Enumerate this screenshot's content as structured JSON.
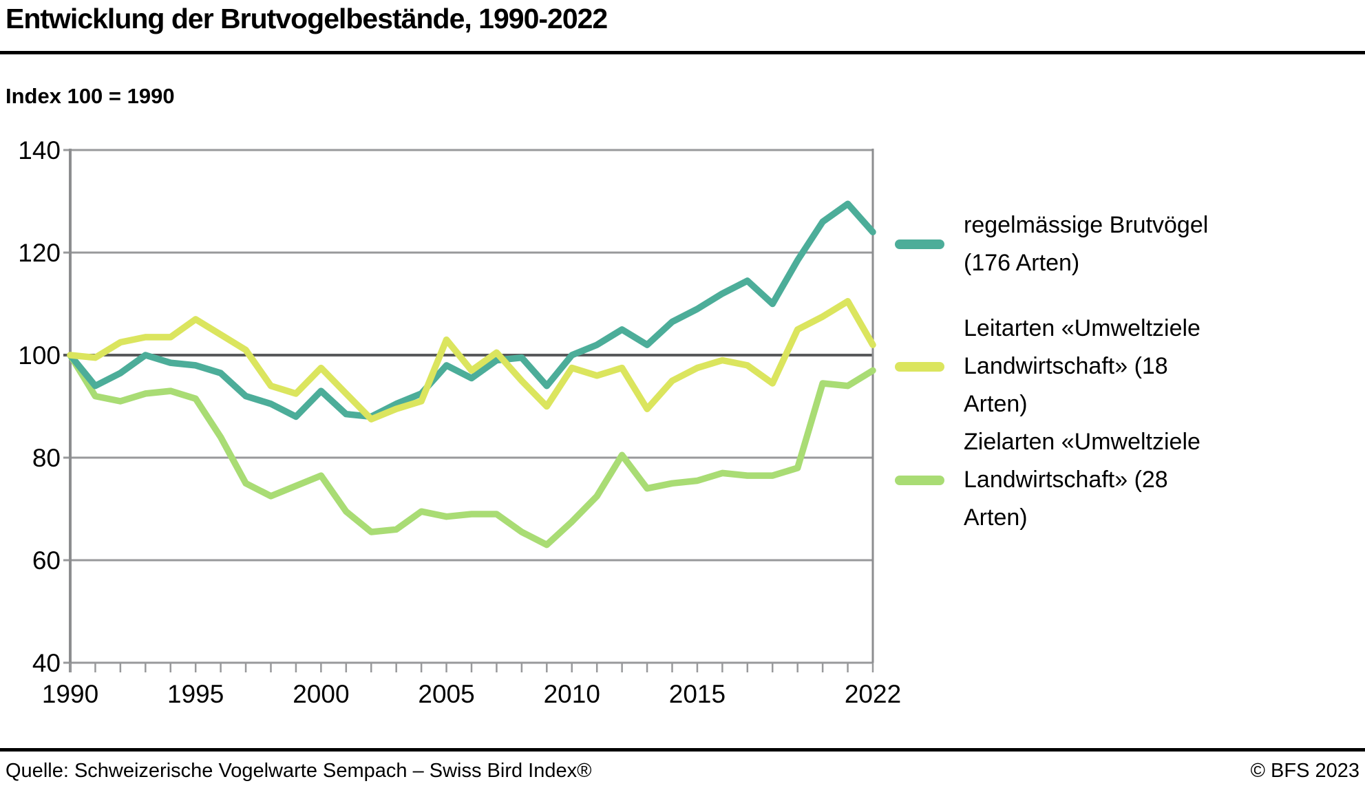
{
  "header": {
    "title": "Entwicklung der Brutvogelbestände, 1990-2022",
    "subtitle": "Index 100 = 1990"
  },
  "footer": {
    "source": "Quelle: Schweizerische Vogelwarte Sempach – Swiss Bird Index®",
    "copyright": "© BFS 2023"
  },
  "legend": {
    "items": [
      {
        "lines": [
          "regelmässige Brutvögel",
          "(176 Arten)"
        ],
        "color": "#4cad99"
      },
      {
        "lines": [
          "Leitarten «Umweltziele",
          "Landwirtschaft» (18",
          "Arten)"
        ],
        "color": "#dbe55e"
      },
      {
        "lines": [
          "Zielarten «Umweltziele",
          "Landwirtschaft» (28",
          "Arten)"
        ],
        "color": "#a9dc74"
      }
    ]
  },
  "chart_data": {
    "type": "line",
    "title": "Entwicklung der Brutvogelbestände, 1990-2022",
    "subtitle": "Index 100 = 1990",
    "xlabel": "",
    "ylabel": "",
    "ylim": [
      40,
      140
    ],
    "y_ticks": [
      40,
      60,
      80,
      100,
      120,
      140
    ],
    "emphasized_gridline": 100,
    "grid": true,
    "legend_position": "right",
    "x": [
      1990,
      1991,
      1992,
      1993,
      1994,
      1995,
      1996,
      1997,
      1998,
      1999,
      2000,
      2001,
      2002,
      2003,
      2004,
      2005,
      2006,
      2007,
      2008,
      2009,
      2010,
      2011,
      2012,
      2013,
      2014,
      2015,
      2016,
      2017,
      2018,
      2019,
      2020,
      2021,
      2022
    ],
    "x_tick_labels": [
      1990,
      1995,
      2000,
      2005,
      2010,
      2015,
      2022
    ],
    "draw_order": [
      2,
      0,
      1
    ],
    "series": [
      {
        "name": "regelmässige Brutvögel (176 Arten)",
        "color": "#4cad99",
        "values": [
          100,
          94,
          96.5,
          100,
          98.5,
          98,
          96.5,
          92,
          90.5,
          88,
          93,
          88.5,
          88,
          90.5,
          92.5,
          98,
          95.5,
          99,
          99.5,
          94,
          100,
          102,
          105,
          102,
          106.5,
          109,
          112,
          114.5,
          110,
          118.5,
          126,
          129.5,
          124
        ]
      },
      {
        "name": "Leitarten «Umweltziele Landwirtschaft» (18 Arten)",
        "color": "#dbe55e",
        "values": [
          100,
          99.5,
          102.5,
          103.5,
          103.5,
          107,
          104,
          101,
          94,
          92.5,
          97.5,
          92.5,
          87.5,
          89.5,
          91,
          103,
          97,
          100.5,
          95,
          90,
          97.5,
          96,
          97.5,
          89.5,
          95,
          97.5,
          99,
          98,
          94.5,
          105,
          107.5,
          110.5,
          102
        ]
      },
      {
        "name": "Zielarten «Umweltziele Landwirtschaft» (28 Arten)",
        "color": "#a9dc74",
        "values": [
          100,
          92,
          91,
          92.5,
          93,
          91.5,
          84,
          75,
          72.5,
          74.5,
          76.5,
          69.5,
          65.5,
          66,
          69.5,
          68.5,
          69,
          69,
          65.5,
          63,
          67.5,
          72.5,
          80.5,
          74,
          75,
          75.5,
          77,
          76.5,
          76.5,
          78,
          94.5,
          94,
          97
        ]
      }
    ],
    "style": {
      "grid_color": "#98999b",
      "emphasized_grid_color": "#58595b",
      "axis_color": "#8c8d8f",
      "tick_label_size": 37,
      "line_width": 9.5
    }
  }
}
